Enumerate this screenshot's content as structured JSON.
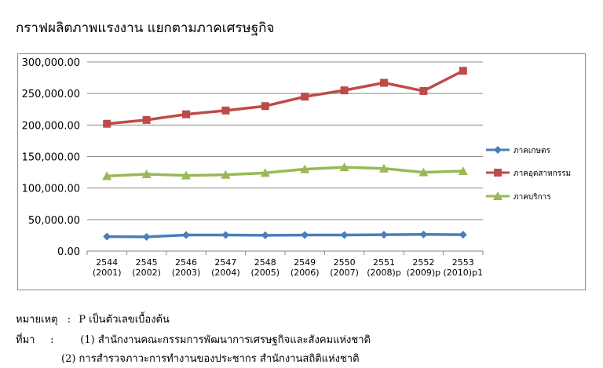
{
  "title": "กราฟผลิตภาพแรงงาน แยกตามภาคเศรษฐกิจ",
  "chart_data": {
    "type": "line",
    "title": "",
    "xlabel": "",
    "ylabel": "",
    "categories": [
      [
        "2544",
        "(2001)"
      ],
      [
        "2545",
        "(2002)"
      ],
      [
        "2546",
        "(2003)"
      ],
      [
        "2547",
        "(2004)"
      ],
      [
        "2548",
        "(2005)"
      ],
      [
        "2549",
        "(2006)"
      ],
      [
        "2550",
        "(2007)"
      ],
      [
        "2551",
        "(2008)p"
      ],
      [
        "2552",
        "(2009)p"
      ],
      [
        "2553",
        "(2010)p1"
      ]
    ],
    "ylim": [
      0,
      300000
    ],
    "yticks": [
      0,
      50000,
      100000,
      150000,
      200000,
      250000,
      300000
    ],
    "ytick_labels": [
      "0.00",
      "50,000.00",
      "100,000.00",
      "150,000.00",
      "200,000.00",
      "250,000.00",
      "300,000.00"
    ],
    "grid": true,
    "legend_position": "right",
    "series": [
      {
        "name": "ภาคเกษตร",
        "color": "#4a7ebb",
        "marker": "diamond",
        "values": [
          23000,
          22500,
          25500,
          25500,
          25000,
          25500,
          25500,
          26000,
          26500,
          26000
        ]
      },
      {
        "name": "ภาคอุตสาหกรรม",
        "color": "#be4b48",
        "marker": "square",
        "values": [
          202000,
          208000,
          217000,
          223000,
          230000,
          245000,
          255000,
          267000,
          254000,
          286000
        ]
      },
      {
        "name": "ภาคบริการ",
        "color": "#98b954",
        "marker": "triangle",
        "values": [
          119000,
          122000,
          120000,
          121000,
          124000,
          130000,
          133000,
          131000,
          125000,
          127000
        ]
      }
    ]
  },
  "notes": {
    "remark_label": "หมายเหตุ",
    "remark_sep": ":",
    "remark_text": "P เป็นตัวเลขเบื้องต้น",
    "source_label": "ที่มา",
    "source_sep": ":",
    "source_1": "(1) สำนักงานคณะกรรมการพัฒนาการเศรษฐกิจและสังคมแห่งชาติ",
    "source_2": "(2) การสำรวจภาวะการทำงานของประชากร สำนักงานสถิติแห่งชาติ"
  }
}
